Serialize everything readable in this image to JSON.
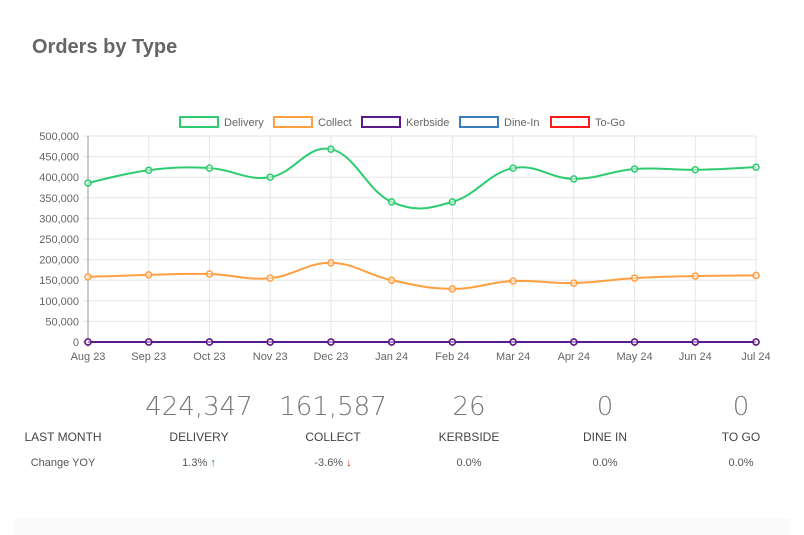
{
  "title": "Orders by Type",
  "chart_data": {
    "type": "line",
    "categories": [
      "Aug 23",
      "Sep 23",
      "Oct 23",
      "Nov 23",
      "Dec 23",
      "Jan 24",
      "Feb 24",
      "Mar 24",
      "Apr 24",
      "May 24",
      "Jun 24",
      "Jul 24"
    ],
    "series": [
      {
        "name": "Delivery",
        "color": "#2ecc71",
        "values": [
          386000,
          417000,
          422000,
          400000,
          468000,
          340000,
          340000,
          422000,
          396000,
          420000,
          418000,
          424347
        ]
      },
      {
        "name": "Collect",
        "color": "#ff9f40",
        "values": [
          158000,
          163000,
          165000,
          155000,
          192000,
          150000,
          129000,
          148000,
          143000,
          155000,
          160000,
          161587
        ]
      },
      {
        "name": "Kerbside",
        "color": "#5b1a8c",
        "values": [
          0,
          0,
          0,
          0,
          0,
          0,
          0,
          0,
          0,
          0,
          0,
          26
        ]
      },
      {
        "name": "Dine-In",
        "color": "#3a7bbf",
        "values": [
          0,
          0,
          0,
          0,
          0,
          0,
          0,
          0,
          0,
          0,
          0,
          0
        ]
      },
      {
        "name": "To-Go",
        "color": "#ff1a1a",
        "values": [
          0,
          0,
          0,
          0,
          0,
          0,
          0,
          0,
          0,
          0,
          0,
          0
        ]
      }
    ],
    "yticks": [
      "0",
      "50,000",
      "100,000",
      "150,000",
      "200,000",
      "250,000",
      "300,000",
      "350,000",
      "400,000",
      "450,000",
      "500,000"
    ],
    "ylim": [
      0,
      500000
    ],
    "legend": "top",
    "grid": true
  },
  "stats": {
    "row_label": "LAST MONTH",
    "change_label": "Change YOY",
    "items": [
      {
        "value": "424,347",
        "label": "DELIVERY",
        "change": "1.3%",
        "arrow": "↑",
        "dir": "up"
      },
      {
        "value": "161,587",
        "label": "COLLECT",
        "change": "-3.6%",
        "arrow": "↓",
        "dir": "down"
      },
      {
        "value": "26",
        "label": "KERBSIDE",
        "change": "0.0%",
        "arrow": "",
        "dir": ""
      },
      {
        "value": "0",
        "label": "DINE IN",
        "change": "0.0%",
        "arrow": "",
        "dir": ""
      },
      {
        "value": "0",
        "label": "TO GO",
        "change": "0.0%",
        "arrow": "",
        "dir": ""
      }
    ]
  }
}
